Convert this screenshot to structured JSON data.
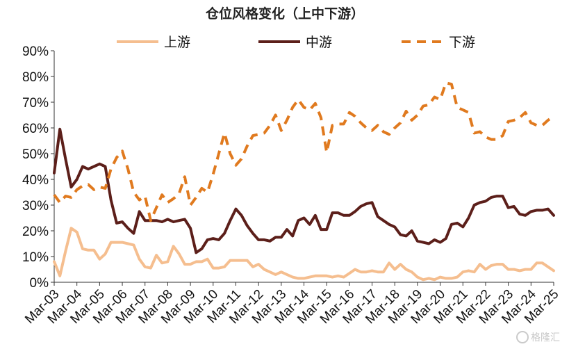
{
  "chart_data": {
    "type": "line",
    "title": "仓位风格变化（上中下游）",
    "x_ticks": [
      "Mar-03",
      "Mar-04",
      "Mar-05",
      "Mar-06",
      "Mar-07",
      "Mar-08",
      "Mar-09",
      "Mar-10",
      "Mar-11",
      "Mar-12",
      "Mar-13",
      "Mar-14",
      "Mar-15",
      "Mar-16",
      "Mar-17",
      "Mar-18",
      "Mar-19",
      "Mar-20",
      "Mar-21",
      "Mar-22",
      "Mar-23",
      "Mar-24",
      "Mar-25"
    ],
    "y_ticks": [
      "0%",
      "10%",
      "20%",
      "30%",
      "40%",
      "50%",
      "60%",
      "70%",
      "80%",
      "90%"
    ],
    "ylim": [
      0,
      90
    ],
    "xlim": [
      2003.0,
      2025.0
    ],
    "legend_position": "top",
    "grid": false,
    "series": [
      {
        "name": "上游",
        "color": "#F5BE8F",
        "dash": "solid",
        "width": 4,
        "points": [
          [
            2003.0,
            8
          ],
          [
            2003.25,
            2.5
          ],
          [
            2003.5,
            12
          ],
          [
            2003.75,
            21
          ],
          [
            2004.0,
            19.5
          ],
          [
            2004.25,
            13
          ],
          [
            2004.5,
            12.5
          ],
          [
            2004.75,
            12.5
          ],
          [
            2005.0,
            9
          ],
          [
            2005.25,
            11
          ],
          [
            2005.5,
            15.5
          ],
          [
            2005.75,
            15.5
          ],
          [
            2006.0,
            15.5
          ],
          [
            2006.25,
            15
          ],
          [
            2006.5,
            14.5
          ],
          [
            2006.75,
            9
          ],
          [
            2007.0,
            6
          ],
          [
            2007.25,
            5.5
          ],
          [
            2007.5,
            10.5
          ],
          [
            2007.75,
            7.5
          ],
          [
            2008.0,
            8
          ],
          [
            2008.25,
            14
          ],
          [
            2008.5,
            11
          ],
          [
            2008.75,
            7
          ],
          [
            2009.0,
            7
          ],
          [
            2009.25,
            8
          ],
          [
            2009.5,
            8
          ],
          [
            2009.75,
            9
          ],
          [
            2010.0,
            5.5
          ],
          [
            2010.25,
            5.5
          ],
          [
            2010.5,
            6
          ],
          [
            2010.75,
            8.5
          ],
          [
            2011.0,
            8.5
          ],
          [
            2011.25,
            8.5
          ],
          [
            2011.5,
            8.5
          ],
          [
            2011.75,
            6
          ],
          [
            2012.0,
            7
          ],
          [
            2012.25,
            5
          ],
          [
            2012.5,
            4
          ],
          [
            2012.75,
            3
          ],
          [
            2013.0,
            4
          ],
          [
            2013.25,
            3
          ],
          [
            2013.5,
            2
          ],
          [
            2013.75,
            1.5
          ],
          [
            2014.0,
            1.5
          ],
          [
            2014.25,
            2
          ],
          [
            2014.5,
            2.5
          ],
          [
            2014.75,
            2.5
          ],
          [
            2015.0,
            2.5
          ],
          [
            2015.25,
            2
          ],
          [
            2015.5,
            2.5
          ],
          [
            2015.75,
            2
          ],
          [
            2016.0,
            3.5
          ],
          [
            2016.25,
            5
          ],
          [
            2016.5,
            4
          ],
          [
            2016.75,
            4
          ],
          [
            2017.0,
            4.5
          ],
          [
            2017.25,
            4
          ],
          [
            2017.5,
            4
          ],
          [
            2017.75,
            7.5
          ],
          [
            2018.0,
            5
          ],
          [
            2018.25,
            7
          ],
          [
            2018.5,
            5
          ],
          [
            2018.75,
            4
          ],
          [
            2019.0,
            2
          ],
          [
            2019.25,
            1
          ],
          [
            2019.5,
            1.5
          ],
          [
            2019.75,
            1
          ],
          [
            2020.0,
            2
          ],
          [
            2020.25,
            1.5
          ],
          [
            2020.5,
            1.5
          ],
          [
            2020.75,
            2
          ],
          [
            2021.0,
            4
          ],
          [
            2021.25,
            4.5
          ],
          [
            2021.5,
            4
          ],
          [
            2021.75,
            7
          ],
          [
            2022.0,
            5
          ],
          [
            2022.25,
            6.5
          ],
          [
            2022.5,
            7
          ],
          [
            2022.75,
            7
          ],
          [
            2023.0,
            5
          ],
          [
            2023.25,
            5
          ],
          [
            2023.5,
            4.5
          ],
          [
            2023.75,
            5
          ],
          [
            2024.0,
            5
          ],
          [
            2024.25,
            7.5
          ],
          [
            2024.5,
            7.5
          ],
          [
            2024.75,
            6
          ],
          [
            2025.0,
            4.5
          ]
        ]
      },
      {
        "name": "中游",
        "color": "#5C1F1A",
        "dash": "solid",
        "width": 4,
        "points": [
          [
            2003.0,
            42.5
          ],
          [
            2003.25,
            59.5
          ],
          [
            2003.5,
            48
          ],
          [
            2003.75,
            37
          ],
          [
            2004.0,
            40
          ],
          [
            2004.25,
            45
          ],
          [
            2004.5,
            44
          ],
          [
            2004.75,
            45
          ],
          [
            2005.0,
            46
          ],
          [
            2005.25,
            45
          ],
          [
            2005.5,
            32
          ],
          [
            2005.75,
            23
          ],
          [
            2006.0,
            23.5
          ],
          [
            2006.25,
            21
          ],
          [
            2006.5,
            19
          ],
          [
            2006.75,
            27.5
          ],
          [
            2007.0,
            24
          ],
          [
            2007.25,
            24
          ],
          [
            2007.5,
            24
          ],
          [
            2007.75,
            23.5
          ],
          [
            2008.0,
            24.5
          ],
          [
            2008.25,
            23.5
          ],
          [
            2008.5,
            24
          ],
          [
            2008.75,
            24.5
          ],
          [
            2009.0,
            21
          ],
          [
            2009.25,
            11.5
          ],
          [
            2009.5,
            13
          ],
          [
            2009.75,
            16.5
          ],
          [
            2010.0,
            17
          ],
          [
            2010.25,
            16.5
          ],
          [
            2010.5,
            19
          ],
          [
            2010.75,
            24
          ],
          [
            2011.0,
            28.5
          ],
          [
            2011.25,
            26
          ],
          [
            2011.5,
            22
          ],
          [
            2011.75,
            19
          ],
          [
            2012.0,
            16.5
          ],
          [
            2012.25,
            16.5
          ],
          [
            2012.5,
            16
          ],
          [
            2012.75,
            17.5
          ],
          [
            2013.0,
            17.5
          ],
          [
            2013.25,
            20.5
          ],
          [
            2013.5,
            18
          ],
          [
            2013.75,
            24
          ],
          [
            2014.0,
            25
          ],
          [
            2014.25,
            22.5
          ],
          [
            2014.5,
            26
          ],
          [
            2014.75,
            20.5
          ],
          [
            2015.0,
            20.5
          ],
          [
            2015.25,
            27
          ],
          [
            2015.5,
            27
          ],
          [
            2015.75,
            26
          ],
          [
            2016.0,
            26
          ],
          [
            2016.25,
            27.5
          ],
          [
            2016.5,
            29.5
          ],
          [
            2016.75,
            30.5
          ],
          [
            2017.0,
            31
          ],
          [
            2017.25,
            25.5
          ],
          [
            2017.5,
            24
          ],
          [
            2017.75,
            22.5
          ],
          [
            2018.0,
            21.5
          ],
          [
            2018.25,
            18.5
          ],
          [
            2018.5,
            18
          ],
          [
            2018.75,
            20
          ],
          [
            2019.0,
            16
          ],
          [
            2019.25,
            15.5
          ],
          [
            2019.5,
            15
          ],
          [
            2019.75,
            16.5
          ],
          [
            2020.0,
            15.5
          ],
          [
            2020.25,
            17
          ],
          [
            2020.5,
            22.5
          ],
          [
            2020.75,
            23
          ],
          [
            2021.0,
            21.5
          ],
          [
            2021.25,
            25
          ],
          [
            2021.5,
            30
          ],
          [
            2021.75,
            31
          ],
          [
            2022.0,
            31.5
          ],
          [
            2022.25,
            33
          ],
          [
            2022.5,
            33.5
          ],
          [
            2022.75,
            33.5
          ],
          [
            2023.0,
            29
          ],
          [
            2023.25,
            29.5
          ],
          [
            2023.5,
            26.5
          ],
          [
            2023.75,
            26
          ],
          [
            2024.0,
            27.5
          ],
          [
            2024.25,
            28
          ],
          [
            2024.5,
            28
          ],
          [
            2024.75,
            28.5
          ],
          [
            2025.0,
            26
          ]
        ]
      },
      {
        "name": "下游",
        "color": "#E07A1F",
        "dash": "dashed",
        "width": 4,
        "points": [
          [
            2003.0,
            34
          ],
          [
            2003.25,
            31
          ],
          [
            2003.5,
            33.5
          ],
          [
            2003.75,
            33
          ],
          [
            2004.0,
            36
          ],
          [
            2004.25,
            37.5
          ],
          [
            2004.5,
            38
          ],
          [
            2004.75,
            36
          ],
          [
            2005.0,
            37
          ],
          [
            2005.25,
            36.5
          ],
          [
            2005.5,
            44
          ],
          [
            2005.75,
            48.5
          ],
          [
            2006.0,
            51
          ],
          [
            2006.25,
            44
          ],
          [
            2006.5,
            35
          ],
          [
            2006.75,
            32
          ],
          [
            2007.0,
            33.5
          ],
          [
            2007.25,
            24
          ],
          [
            2007.5,
            29
          ],
          [
            2007.75,
            34
          ],
          [
            2008.0,
            31
          ],
          [
            2008.25,
            32.5
          ],
          [
            2008.5,
            34.5
          ],
          [
            2008.75,
            41
          ],
          [
            2009.0,
            30
          ],
          [
            2009.25,
            33
          ],
          [
            2009.5,
            36.5
          ],
          [
            2009.75,
            35
          ],
          [
            2010.0,
            42
          ],
          [
            2010.25,
            50
          ],
          [
            2010.5,
            58
          ],
          [
            2010.75,
            50
          ],
          [
            2011.0,
            45.5
          ],
          [
            2011.25,
            48
          ],
          [
            2011.5,
            53
          ],
          [
            2011.75,
            57
          ],
          [
            2012.0,
            57.5
          ],
          [
            2012.25,
            58
          ],
          [
            2012.5,
            61
          ],
          [
            2012.75,
            65
          ],
          [
            2013.0,
            59
          ],
          [
            2013.25,
            63
          ],
          [
            2013.5,
            68
          ],
          [
            2013.75,
            71
          ],
          [
            2014.0,
            68
          ],
          [
            2014.25,
            67
          ],
          [
            2014.5,
            69.5
          ],
          [
            2014.75,
            64
          ],
          [
            2015.0,
            50.5
          ],
          [
            2015.25,
            61
          ],
          [
            2015.5,
            61.5
          ],
          [
            2015.75,
            61.5
          ],
          [
            2016.0,
            66
          ],
          [
            2016.25,
            64.5
          ],
          [
            2016.5,
            62
          ],
          [
            2016.75,
            60
          ],
          [
            2017.0,
            59
          ],
          [
            2017.25,
            61
          ],
          [
            2017.5,
            58.5
          ],
          [
            2017.75,
            57.5
          ],
          [
            2018.0,
            60
          ],
          [
            2018.25,
            62
          ],
          [
            2018.5,
            66.5
          ],
          [
            2018.75,
            63
          ],
          [
            2019.0,
            65
          ],
          [
            2019.25,
            68.5
          ],
          [
            2019.5,
            69
          ],
          [
            2019.75,
            72
          ],
          [
            2020.0,
            71
          ],
          [
            2020.25,
            77.5
          ],
          [
            2020.5,
            77
          ],
          [
            2020.75,
            68
          ],
          [
            2021.0,
            67
          ],
          [
            2021.25,
            66
          ],
          [
            2021.5,
            58
          ],
          [
            2021.75,
            58.5
          ],
          [
            2022.0,
            56.5
          ],
          [
            2022.25,
            55.5
          ],
          [
            2022.5,
            55.5
          ],
          [
            2022.75,
            57
          ],
          [
            2023.0,
            62.5
          ],
          [
            2023.25,
            63
          ],
          [
            2023.5,
            64
          ],
          [
            2023.75,
            66
          ],
          [
            2024.0,
            62
          ],
          [
            2024.25,
            61
          ],
          [
            2024.5,
            61
          ],
          [
            2024.75,
            63
          ],
          [
            2025.0,
            64.5
          ]
        ]
      }
    ]
  },
  "watermark": "格隆汇"
}
